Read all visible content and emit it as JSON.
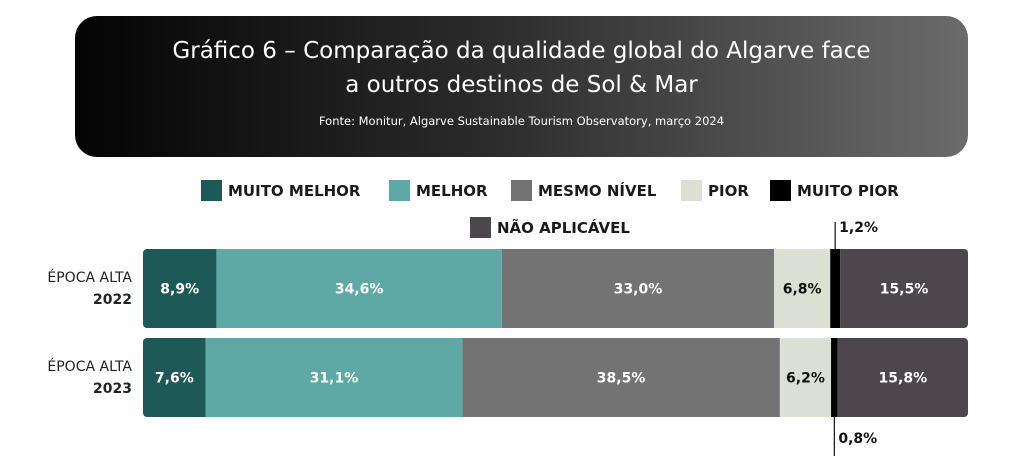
{
  "header": {
    "title": "Gráfico 6 – Comparação da qualidade global do Algarve face a outros destinos de Sol & Mar",
    "source": "Fonte: Monitur, Algarve Sustainable Tourism Observatory, março 2024"
  },
  "chart_data": {
    "type": "bar",
    "orientation": "horizontal",
    "stacked": true,
    "unit": "%",
    "categories": [
      {
        "line1": "ÉPOCA ALTA",
        "line2": "2022"
      },
      {
        "line1": "ÉPOCA ALTA",
        "line2": "2023"
      }
    ],
    "series": [
      {
        "name": "MUITO MELHOR",
        "color": "#1d5957",
        "label_color": "#ffffff",
        "values": [
          8.9,
          7.6
        ],
        "labels": [
          "8,9%",
          "7,6%"
        ]
      },
      {
        "name": "MELHOR",
        "color": "#5ea9a5",
        "label_color": "#ffffff",
        "values": [
          34.6,
          31.1
        ],
        "labels": [
          "34,6%",
          "31,1%"
        ]
      },
      {
        "name": "MESMO NÍVEL",
        "color": "#737373",
        "label_color": "#ffffff",
        "values": [
          33.0,
          38.5
        ],
        "labels": [
          "33,0%",
          "38,5%"
        ]
      },
      {
        "name": "PIOR",
        "color": "#dcdfd4",
        "label_color": "#111111",
        "values": [
          6.8,
          6.2
        ],
        "labels": [
          "6,8%",
          "6,2%"
        ]
      },
      {
        "name": "MUITO PIOR",
        "color": "#000000",
        "label_color": "#111111",
        "values": [
          1.2,
          0.8
        ],
        "labels": [
          "1,2%",
          "0,8%"
        ],
        "labels_outside": true
      },
      {
        "name": "NÃO APLICÁVEL",
        "color": "#4e464d",
        "label_color": "#ffffff",
        "values": [
          15.5,
          15.8
        ],
        "labels": [
          "15,5%",
          "15,8%"
        ]
      }
    ],
    "legend_position": "top",
    "grid": false
  }
}
